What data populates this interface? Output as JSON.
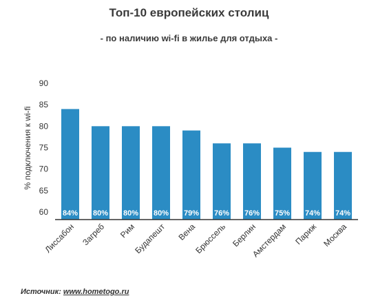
{
  "chart_data": {
    "type": "bar",
    "title": "Топ-10 европейских столиц",
    "subtitle": "- по наличию wi-fi в жилье для отдыха -",
    "ylabel": "% подключения к wi-fi",
    "xlabel": "",
    "categories": [
      "Лиссабон",
      "Загреб",
      "Рим",
      "Будапешт",
      "Вена",
      "Брюссель",
      "Берлин",
      "Амстердам",
      "Париж",
      "Москва"
    ],
    "values": [
      84,
      80,
      80,
      80,
      79,
      76,
      76,
      75,
      74,
      74
    ],
    "data_labels": [
      "84%",
      "80%",
      "80%",
      "80%",
      "79%",
      "76%",
      "76%",
      "75%",
      "74%",
      "74%"
    ],
    "ylim": [
      60,
      90
    ],
    "yticks": [
      "60",
      "65",
      "70",
      "75",
      "80",
      "85",
      "90"
    ],
    "bar_color": "#2b8cc4",
    "grid": false
  },
  "source": {
    "label": "Источник:",
    "link": "www.hometogo.ru"
  }
}
